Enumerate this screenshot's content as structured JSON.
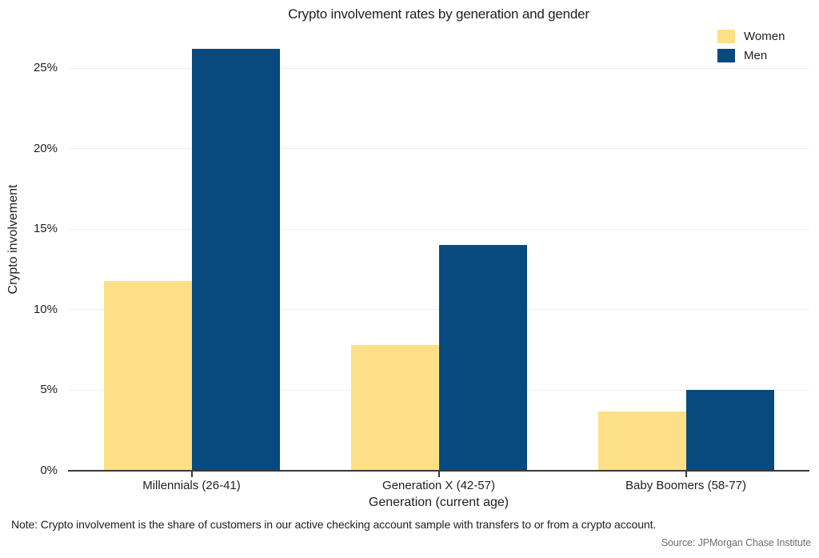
{
  "chart": {
    "title": "Crypto involvement rates by generation and gender",
    "y_axis_label": "Crypto involvement",
    "x_axis_label": "Generation (current age)",
    "note": "Note: Crypto involvement is the share of customers in our active checking account sample with transfers to or from a crypto account.",
    "source": "Source: JPMorgan Chase Institute"
  },
  "legend": {
    "items": [
      {
        "label": "Women",
        "color": "#FCDF86"
      },
      {
        "label": "Men",
        "color": "#084A7D"
      }
    ]
  },
  "chart_data": {
    "type": "bar",
    "title": "Crypto involvement rates by generation and gender",
    "categories": [
      "Millennials (26-41)",
      "Generation X (42-57)",
      "Baby Boomers (58-77)"
    ],
    "series": [
      {
        "name": "Women",
        "color": "#FCDF86",
        "values": [
          11.8,
          7.8,
          3.7
        ]
      },
      {
        "name": "Men",
        "color": "#084A7D",
        "values": [
          26.2,
          14.0,
          5.0
        ]
      }
    ],
    "xlabel": "Generation (current age)",
    "ylabel": "Crypto involvement",
    "ylim": [
      0,
      27
    ],
    "yticks": [
      0,
      5,
      10,
      15,
      20,
      25
    ],
    "ytick_suffix": "%",
    "grid": true,
    "legend_position": "top-right",
    "note": "Note: Crypto involvement is the share of customers in our active checking account sample with transfers to or from a crypto account.",
    "source": "Source: JPMorgan Chase Institute"
  }
}
